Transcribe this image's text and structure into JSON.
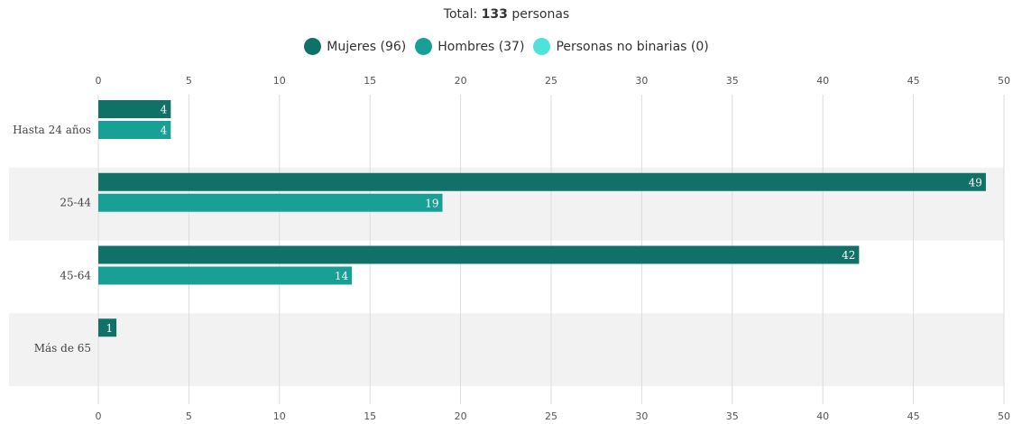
{
  "header": {
    "total_prefix": "Total: ",
    "total_value": "133",
    "total_suffix": " personas"
  },
  "legend": [
    {
      "label": "Mujeres (96)",
      "color": "#0f7168"
    },
    {
      "label": "Hombres (37)",
      "color": "#18a096"
    },
    {
      "label": "Personas no binarias (0)",
      "color": "#4de3dc"
    }
  ],
  "chart_data": {
    "type": "bar",
    "orientation": "horizontal",
    "title": "",
    "xlabel": "",
    "ylabel": "",
    "xlim": [
      0,
      50
    ],
    "xticks": [
      0,
      5,
      10,
      15,
      20,
      25,
      30,
      35,
      40,
      45,
      50
    ],
    "grid": true,
    "legend_position": "top-center",
    "categories": [
      "Hasta 24 años",
      "25-44",
      "45-64",
      "Más de 65"
    ],
    "series": [
      {
        "name": "Mujeres (96)",
        "values": [
          4,
          49,
          42,
          1
        ]
      },
      {
        "name": "Hombres (37)",
        "values": [
          4,
          19,
          14,
          0
        ]
      },
      {
        "name": "Personas no binarias (0)",
        "values": [
          0,
          0,
          0,
          0
        ]
      }
    ]
  }
}
